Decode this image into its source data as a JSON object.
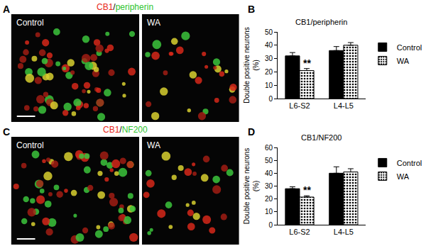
{
  "panels": [
    {
      "letter": "A",
      "title": [
        {
          "text": "CB1",
          "color": "#e8261a"
        },
        {
          "text": "/",
          "color": "#000000"
        },
        {
          "text": "peripherin",
          "color": "#2fc42f"
        }
      ],
      "labels": [
        "Control",
        "WA"
      ]
    },
    {
      "letter": "C",
      "title": [
        {
          "text": "CB1",
          "color": "#e8261a"
        },
        {
          "text": "/",
          "color": "#000000"
        },
        {
          "text": "NF200",
          "color": "#2fc42f"
        }
      ],
      "labels": [
        "Control",
        "WA"
      ]
    }
  ],
  "chart_data": [
    {
      "letter": "B",
      "type": "bar",
      "title": "CB1/peripherin",
      "categories": [
        "L6-S2",
        "L4-L5"
      ],
      "ylabel": [
        "Double positive neurons",
        "(%)"
      ],
      "series": [
        {
          "name": "Control",
          "color": "#000000",
          "marker": "solid",
          "values": [
            32,
            36
          ],
          "errors": [
            2.5,
            3
          ]
        },
        {
          "name": "WA",
          "color": "#ffffff",
          "marker": "dots",
          "values": [
            21,
            40
          ],
          "errors": [
            1.5,
            2
          ]
        }
      ],
      "annotations": [
        {
          "text": "**",
          "category": "L6-S2",
          "series": "WA"
        }
      ],
      "ylim": [
        0,
        50
      ],
      "yticks": [
        0,
        10,
        20,
        30,
        40,
        50
      ],
      "grid": false,
      "legend": "top right"
    },
    {
      "letter": "D",
      "type": "bar",
      "title": "CB1/NF200",
      "categories": [
        "L6-S2",
        "L4-L5"
      ],
      "ylabel": [
        "Double positive neurons",
        "(%)"
      ],
      "series": [
        {
          "name": "Control",
          "color": "#000000",
          "marker": "solid",
          "values": [
            28,
            40
          ],
          "errors": [
            1.5,
            5
          ]
        },
        {
          "name": "WA",
          "color": "#ffffff",
          "marker": "dots",
          "values": [
            21.5,
            41
          ],
          "errors": [
            1,
            2.5
          ]
        }
      ],
      "annotations": [
        {
          "text": "**",
          "category": "L6-S2",
          "series": "WA"
        }
      ],
      "ylim": [
        0,
        60
      ],
      "yticks": [
        0,
        10,
        20,
        30,
        40,
        50,
        60
      ],
      "grid": false,
      "legend": "top right"
    }
  ]
}
